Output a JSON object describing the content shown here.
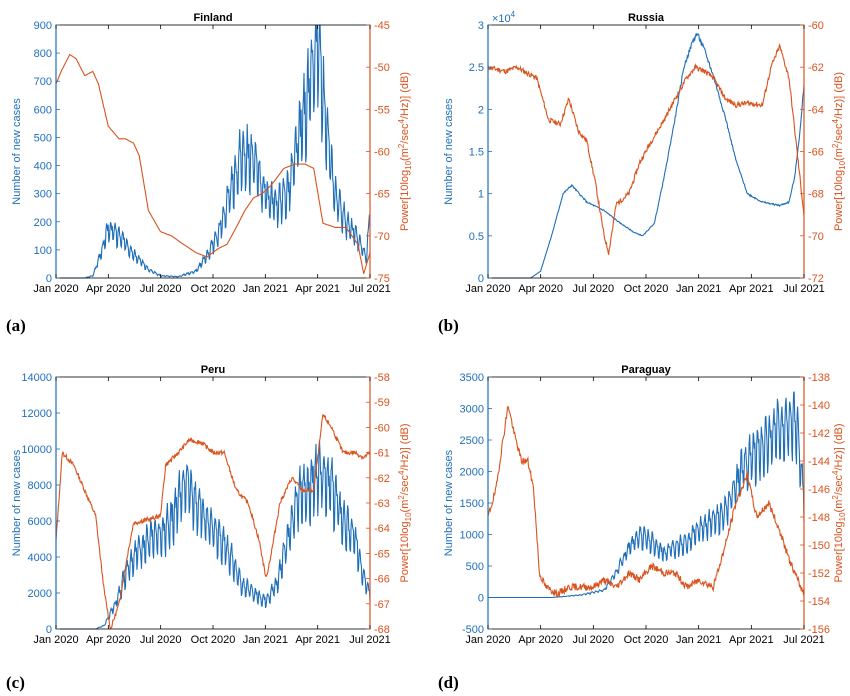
{
  "colors": {
    "left_axis": "#1f6fb8",
    "right_axis": "#d9531e",
    "frame": "#000000"
  },
  "chart_data": [
    {
      "type": "line",
      "panel_label": "(a)",
      "title": "Finland",
      "x_tick_labels": [
        "Jan 2020",
        "Apr 2020",
        "Jul 2020",
        "Oct 2020",
        "Jan 2021",
        "Apr 2021",
        "Jul 2021"
      ],
      "xlim": [
        "2020-01-01",
        "2021-07-01"
      ],
      "ylabel_left": "Number of new cases",
      "ylabel_right": "Power[10log10(m2/sec4/Hz)] (dB)",
      "ylim_left": [
        0,
        900
      ],
      "ylim_right": [
        -75,
        -45
      ],
      "yticks_left": [
        "0",
        "100",
        "200",
        "300",
        "400",
        "500",
        "600",
        "700",
        "800",
        "900"
      ],
      "yticks_right": [
        "-75",
        "-70",
        "-65",
        "-60",
        "-55",
        "-50",
        "-45"
      ],
      "exponent_label": "",
      "series": [
        {
          "axis": "left",
          "style": "daily-oscillating",
          "amp": 0.35,
          "seed": 3,
          "x": [
            "2020-01-01",
            "2020-02-20",
            "2020-03-05",
            "2020-03-20",
            "2020-04-01",
            "2020-04-20",
            "2020-05-15",
            "2020-06-10",
            "2020-07-01",
            "2020-08-01",
            "2020-09-01",
            "2020-09-20",
            "2020-10-10",
            "2020-11-01",
            "2020-11-20",
            "2020-12-10",
            "2020-12-31",
            "2021-01-20",
            "2021-02-10",
            "2021-03-01",
            "2021-03-20",
            "2021-04-01",
            "2021-04-15",
            "2021-05-01",
            "2021-05-20",
            "2021-06-10",
            "2021-06-25",
            "2021-07-01"
          ],
          "y": [
            0,
            0,
            8,
            90,
            180,
            150,
            90,
            30,
            8,
            5,
            25,
            80,
            160,
            310,
            450,
            420,
            300,
            260,
            320,
            520,
            700,
            830,
            550,
            300,
            200,
            140,
            70,
            240
          ]
        },
        {
          "axis": "right",
          "style": "smooth",
          "x": [
            "2020-01-01",
            "2020-01-10",
            "2020-01-25",
            "2020-02-05",
            "2020-02-20",
            "2020-03-05",
            "2020-03-15",
            "2020-04-01",
            "2020-04-20",
            "2020-05-01",
            "2020-05-15",
            "2020-05-25",
            "2020-06-10",
            "2020-07-01",
            "2020-07-20",
            "2020-08-10",
            "2020-09-01",
            "2020-09-20",
            "2020-10-10",
            "2020-10-25",
            "2020-11-10",
            "2020-11-25",
            "2020-12-10",
            "2020-12-25",
            "2021-01-10",
            "2021-02-01",
            "2021-02-20",
            "2021-03-10",
            "2021-03-25",
            "2021-04-10",
            "2021-05-01",
            "2021-05-20",
            "2021-06-10",
            "2021-06-20",
            "2021-07-01"
          ],
          "y": [
            -52,
            -50.5,
            -48.5,
            -49,
            -51,
            -50.5,
            -52,
            -57,
            -58.5,
            -58.5,
            -59,
            -60.5,
            -67,
            -69.5,
            -70,
            -71,
            -72,
            -72.5,
            -71.5,
            -71,
            -69,
            -67,
            -65.5,
            -65,
            -64,
            -62,
            -61.5,
            -61.5,
            -62,
            -68.5,
            -69,
            -69,
            -71,
            -74.5,
            -72
          ]
        }
      ]
    },
    {
      "type": "line",
      "panel_label": "(b)",
      "title": "Russia",
      "x_tick_labels": [
        "Jan 2020",
        "Apr 2020",
        "Jul 2020",
        "Oct 2020",
        "Jan 2021",
        "Apr 2021",
        "Jul 2021"
      ],
      "xlim": [
        "2020-01-01",
        "2021-07-01"
      ],
      "ylabel_left": "Number of new cases",
      "ylabel_right": "Power[10log10(m2/sec4/Hz)] (dB)",
      "ylim_left": [
        0,
        30000
      ],
      "ylim_right": [
        -72,
        -60
      ],
      "yticks_left": [
        "0",
        "0.5",
        "1",
        "1.5",
        "2",
        "2.5",
        "3"
      ],
      "yticks_right": [
        "-72",
        "-70",
        "-68",
        "-66",
        "-64",
        "-62",
        "-60"
      ],
      "exponent_label": "×10",
      "exponent_power": "4",
      "series": [
        {
          "axis": "left",
          "style": "smooth-noisy",
          "amp": 0.02,
          "seed": 5,
          "x": [
            "2020-01-01",
            "2020-03-15",
            "2020-04-01",
            "2020-04-20",
            "2020-05-10",
            "2020-05-25",
            "2020-06-20",
            "2020-07-20",
            "2020-08-15",
            "2020-09-10",
            "2020-09-25",
            "2020-10-15",
            "2020-11-01",
            "2020-11-20",
            "2020-12-05",
            "2020-12-20",
            "2020-12-28",
            "2021-01-10",
            "2021-01-25",
            "2021-02-15",
            "2021-03-05",
            "2021-03-25",
            "2021-04-20",
            "2021-05-20",
            "2021-06-05",
            "2021-06-15",
            "2021-06-25",
            "2021-07-01"
          ],
          "y": [
            0,
            0,
            800,
            5000,
            10000,
            11000,
            9000,
            8000,
            6600,
            5400,
            5000,
            6500,
            12000,
            19000,
            25000,
            28000,
            29000,
            27000,
            24000,
            19000,
            14000,
            10000,
            9000,
            8600,
            9000,
            12000,
            18000,
            23000
          ]
        },
        {
          "axis": "right",
          "style": "noisy",
          "amp": 0.25,
          "seed": 11,
          "x": [
            "2020-01-01",
            "2020-02-01",
            "2020-02-20",
            "2020-03-10",
            "2020-03-25",
            "2020-04-15",
            "2020-05-05",
            "2020-05-20",
            "2020-06-05",
            "2020-06-20",
            "2020-07-05",
            "2020-07-20",
            "2020-07-28",
            "2020-08-10",
            "2020-09-01",
            "2020-09-20",
            "2020-10-10",
            "2020-11-01",
            "2020-11-20",
            "2020-12-10",
            "2020-12-25",
            "2021-01-10",
            "2021-01-25",
            "2021-02-15",
            "2021-03-05",
            "2021-03-25",
            "2021-04-20",
            "2021-05-05",
            "2021-05-20",
            "2021-06-05",
            "2021-06-15",
            "2021-06-25",
            "2021-07-01"
          ],
          "y": [
            -62,
            -62.2,
            -62,
            -62.3,
            -62.5,
            -64.5,
            -64.7,
            -63.5,
            -65,
            -65.5,
            -67.5,
            -70,
            -70.8,
            -68.5,
            -68,
            -66.5,
            -65.5,
            -64.5,
            -63.5,
            -62.5,
            -62,
            -62.2,
            -62.5,
            -63.5,
            -63.8,
            -63.7,
            -63.8,
            -62,
            -61,
            -62.5,
            -65,
            -67.5,
            -69
          ]
        }
      ]
    },
    {
      "type": "line",
      "panel_label": "(c)",
      "title": "Peru",
      "x_tick_labels": [
        "Jan 2020",
        "Apr 2020",
        "Jul 2020",
        "Oct 2020",
        "Jan 2021",
        "Apr 2021",
        "Jul 2021"
      ],
      "xlim": [
        "2020-01-01",
        "2021-07-01"
      ],
      "ylabel_left": "Number of new cases",
      "ylabel_right": "Power[10log10(m2/sec4/Hz)] (dB)",
      "ylim_left": [
        0,
        14000
      ],
      "ylim_right": [
        -68,
        -58
      ],
      "yticks_left": [
        "0",
        "2000",
        "4000",
        "6000",
        "8000",
        "10000",
        "12000",
        "14000"
      ],
      "yticks_right": [
        "-68",
        "-67",
        "-66",
        "-65",
        "-64",
        "-63",
        "-62",
        "-61",
        "-60",
        "-59",
        "-58"
      ],
      "exponent_label": "",
      "series": [
        {
          "axis": "left",
          "style": "daily-oscillating",
          "amp": 0.3,
          "seed": 7,
          "x": [
            "2020-01-01",
            "2020-03-10",
            "2020-03-25",
            "2020-04-15",
            "2020-05-05",
            "2020-05-25",
            "2020-06-15",
            "2020-07-05",
            "2020-07-25",
            "2020-08-15",
            "2020-09-01",
            "2020-09-20",
            "2020-10-10",
            "2020-11-01",
            "2020-11-20",
            "2020-12-10",
            "2020-12-31",
            "2021-01-20",
            "2021-02-10",
            "2021-03-01",
            "2021-03-20",
            "2021-04-05",
            "2021-04-25",
            "2021-05-15",
            "2021-06-05",
            "2021-06-20",
            "2021-07-01"
          ],
          "y": [
            0,
            0,
            200,
            1500,
            3500,
            4500,
            5000,
            5200,
            6500,
            8500,
            7000,
            6000,
            5200,
            4000,
            2500,
            2000,
            1600,
            2500,
            5500,
            7500,
            8000,
            9000,
            8000,
            6000,
            5000,
            3000,
            2000
          ]
        },
        {
          "axis": "right",
          "style": "noisy",
          "amp": 0.22,
          "seed": 13,
          "x": [
            "2020-01-01",
            "2020-01-12",
            "2020-02-01",
            "2020-02-20",
            "2020-03-10",
            "2020-03-25",
            "2020-04-05",
            "2020-04-20",
            "2020-05-05",
            "2020-05-15",
            "2020-06-01",
            "2020-06-20",
            "2020-07-01",
            "2020-07-10",
            "2020-08-01",
            "2020-08-20",
            "2020-09-10",
            "2020-10-01",
            "2020-10-20",
            "2020-11-10",
            "2020-12-01",
            "2020-12-20",
            "2021-01-01",
            "2021-01-10",
            "2021-01-25",
            "2021-02-15",
            "2021-03-05",
            "2021-03-25",
            "2021-04-10",
            "2021-04-25",
            "2021-05-15",
            "2021-06-05",
            "2021-06-20",
            "2021-07-01"
          ],
          "y": [
            -64.5,
            -61,
            -61.5,
            -62.5,
            -63.5,
            -66.5,
            -68,
            -67,
            -65,
            -63.8,
            -63.7,
            -63.6,
            -63.5,
            -61.5,
            -61,
            -60.5,
            -60.6,
            -61,
            -61,
            -62.5,
            -63,
            -64.5,
            -66,
            -65,
            -63,
            -62,
            -62.5,
            -62.5,
            -59.5,
            -60,
            -61,
            -61,
            -61.2,
            -61
          ]
        }
      ]
    },
    {
      "type": "line",
      "panel_label": "(d)",
      "title": "Paraguay",
      "x_tick_labels": [
        "Jan 2020",
        "Apr 2020",
        "Jul 2020",
        "Oct 2020",
        "Jan 2021",
        "Apr 2021",
        "Jul 2021"
      ],
      "xlim": [
        "2020-01-01",
        "2021-07-01"
      ],
      "ylabel_left": "Number of new cases",
      "ylabel_right": "Power[10log10(m2/sec4/Hz)] (dB)",
      "ylim_left": [
        -500,
        3500
      ],
      "ylim_right": [
        -156,
        -138
      ],
      "yticks_left": [
        "-500",
        "0",
        "500",
        "1000",
        "1500",
        "2000",
        "2500",
        "3000",
        "3500"
      ],
      "yticks_right": [
        "-156",
        "-154",
        "-152",
        "-150",
        "-148",
        "-146",
        "-144",
        "-142",
        "-140",
        "-138"
      ],
      "exponent_label": "",
      "series": [
        {
          "axis": "left",
          "style": "daily-oscillating",
          "amp": 0.25,
          "seed": 17,
          "x": [
            "2020-01-01",
            "2020-04-20",
            "2020-06-10",
            "2020-07-20",
            "2020-08-10",
            "2020-09-01",
            "2020-09-20",
            "2020-10-10",
            "2020-11-01",
            "2020-11-20",
            "2020-12-10",
            "2021-01-01",
            "2021-01-20",
            "2021-02-10",
            "2021-03-01",
            "2021-03-20",
            "2021-04-10",
            "2021-05-01",
            "2021-05-20",
            "2021-06-05",
            "2021-06-20",
            "2021-07-01"
          ],
          "y": [
            0,
            0,
            40,
            120,
            400,
            800,
            1000,
            900,
            700,
            800,
            900,
            1100,
            1200,
            1300,
            1700,
            2100,
            2300,
            2500,
            2700,
            2900,
            2700,
            1500
          ]
        },
        {
          "axis": "right",
          "style": "noisy",
          "amp": 0.35,
          "seed": 19,
          "x": [
            "2020-01-01",
            "2020-01-15",
            "2020-01-25",
            "2020-02-05",
            "2020-02-15",
            "2020-02-28",
            "2020-03-10",
            "2020-03-20",
            "2020-03-30",
            "2020-04-10",
            "2020-05-01",
            "2020-05-20",
            "2020-06-10",
            "2020-07-01",
            "2020-07-20",
            "2020-08-10",
            "2020-09-01",
            "2020-09-20",
            "2020-10-10",
            "2020-11-01",
            "2020-11-20",
            "2020-12-10",
            "2021-01-01",
            "2021-01-25",
            "2021-02-15",
            "2021-03-05",
            "2021-03-25",
            "2021-04-10",
            "2021-05-01",
            "2021-05-20",
            "2021-06-05",
            "2021-06-20",
            "2021-07-01"
          ],
          "y": [
            -148,
            -146,
            -143,
            -140,
            -142,
            -144,
            -144,
            -146,
            -152,
            -153,
            -153.5,
            -153,
            -153,
            -153,
            -152.5,
            -153,
            -152,
            -152.5,
            -151.5,
            -152,
            -152,
            -153,
            -152.5,
            -153,
            -150,
            -147,
            -145,
            -148,
            -147,
            -149,
            -151,
            -152.5,
            -153.5
          ]
        }
      ]
    }
  ]
}
